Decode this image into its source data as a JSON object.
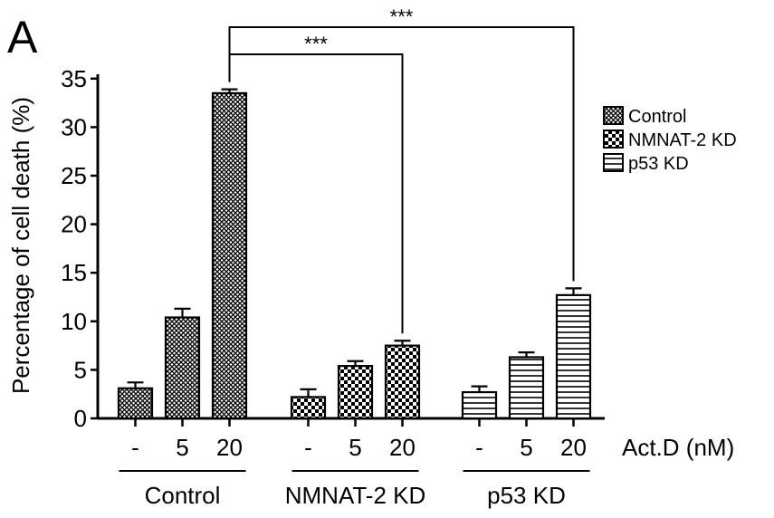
{
  "panel_label": "A",
  "chart_data": {
    "type": "bar",
    "title": "",
    "ylabel": "Percentage of cell death (%)",
    "xlabel": "Act.D (nM)",
    "ylim": [
      0,
      35
    ],
    "yticks": [
      "0",
      "5",
      "10",
      "15",
      "20",
      "25",
      "30",
      "35"
    ],
    "grid": false,
    "legend_position": "top-right",
    "groups": [
      {
        "name": "Control",
        "pattern": "crosshatch",
        "bars": [
          {
            "dose": "-",
            "value": 3.1,
            "error": 0.6
          },
          {
            "dose": "5",
            "value": 10.4,
            "error": 0.9
          },
          {
            "dose": "20",
            "value": 33.5,
            "error": 0.4
          }
        ]
      },
      {
        "name": "NMNAT-2 KD",
        "pattern": "checker",
        "bars": [
          {
            "dose": "-",
            "value": 2.2,
            "error": 0.8
          },
          {
            "dose": "5",
            "value": 5.4,
            "error": 0.5
          },
          {
            "dose": "20",
            "value": 7.5,
            "error": 0.5
          }
        ]
      },
      {
        "name": "p53 KD",
        "pattern": "horizontal",
        "bars": [
          {
            "dose": "-",
            "value": 2.7,
            "error": 0.6
          },
          {
            "dose": "5",
            "value": 6.3,
            "error": 0.5
          },
          {
            "dose": "20",
            "value": 12.7,
            "error": 0.7
          }
        ]
      }
    ],
    "legend": [
      {
        "label": "Control",
        "pattern": "crosshatch"
      },
      {
        "label": "NMNAT-2 KD",
        "pattern": "checker"
      },
      {
        "label": "p53 KD",
        "pattern": "horizontal"
      }
    ],
    "annotations": [
      {
        "text": "***",
        "from_group": 0,
        "from_bar": 2,
        "to_group": 1,
        "to_bar": 2,
        "level": 37.5
      },
      {
        "text": "***",
        "from_group": 0,
        "from_bar": 2,
        "to_group": 2,
        "to_bar": 2,
        "level": 40.3
      }
    ]
  }
}
